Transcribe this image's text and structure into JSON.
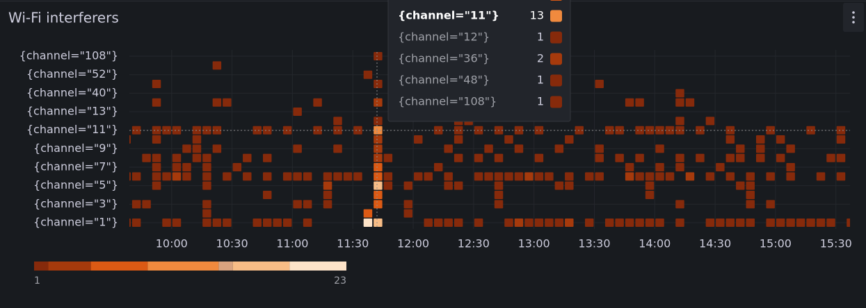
{
  "chart_data": {
    "type": "heatmap",
    "title": "Wi-Fi interferers",
    "xlim": [
      "09:39",
      "15:37"
    ],
    "xticks": [
      "10:00",
      "10:30",
      "11:00",
      "11:30",
      "12:00",
      "12:30",
      "13:00",
      "13:30",
      "14:00",
      "14:30",
      "15:00",
      "15:30"
    ],
    "bin_minutes": 5,
    "grid": true,
    "color_range": [
      1,
      23
    ],
    "color_bands": [
      {
        "from": 1,
        "color": "#862a0b"
      },
      {
        "from": 2,
        "color": "#a63a0c"
      },
      {
        "from": 5,
        "color": "#dc5a14"
      },
      {
        "from": 9,
        "color": "#f08a3e"
      },
      {
        "from": 14,
        "color": "#d9a37f"
      },
      {
        "from": 15,
        "color": "#f8bd86"
      },
      {
        "from": 19,
        "color": "#fde3c8"
      }
    ],
    "rows": [
      {
        "label": "{channel=\"1\"}",
        "x": [
          "09:35",
          "09:40",
          "09:55",
          "10:00",
          "10:15",
          "10:20",
          "10:25",
          "10:40",
          "10:45",
          "10:50",
          "10:55",
          "11:05",
          "11:35",
          "11:40",
          "12:05",
          "12:10",
          "12:15",
          "12:20",
          "12:30",
          "12:45",
          "12:50",
          "12:55",
          "13:00",
          "13:05",
          "13:10",
          "13:15",
          "13:25",
          "13:35",
          "13:40",
          "13:45",
          "13:50",
          "13:55",
          "14:00",
          "14:10",
          "14:25",
          "14:30",
          "14:35",
          "14:40",
          "14:45",
          "14:55",
          "15:00",
          "15:05",
          "15:10",
          "15:15",
          "15:20",
          "15:25",
          "15:35"
        ],
        "values": [
          1,
          1,
          1,
          1,
          1,
          1,
          1,
          1,
          1,
          1,
          1,
          1,
          23,
          17,
          1,
          1,
          1,
          1,
          1,
          1,
          2,
          1,
          1,
          1,
          1,
          2,
          1,
          1,
          1,
          1,
          1,
          1,
          1,
          1,
          1,
          1,
          1,
          1,
          1,
          1,
          1,
          1,
          1,
          1,
          1,
          1,
          1
        ]
      },
      {
        "label": null,
        "x": [
          "10:15",
          "11:35",
          "11:55"
        ],
        "values": [
          1,
          6,
          1
        ]
      },
      {
        "label": "{channel=\"3\"}",
        "x": [
          "09:40",
          "09:45",
          "10:15",
          "11:00",
          "11:05",
          "11:15",
          "11:40",
          "11:55",
          "12:40",
          "14:10",
          "14:45",
          "14:55"
        ],
        "values": [
          1,
          1,
          1,
          1,
          1,
          1,
          6,
          1,
          1,
          1,
          1,
          1
        ]
      },
      {
        "label": null,
        "x": [
          "10:45",
          "11:15",
          "11:40",
          "12:40",
          "13:55",
          "14:45"
        ],
        "values": [
          1,
          1,
          5,
          1,
          1,
          1
        ]
      },
      {
        "label": "{channel=\"5\"}",
        "x": [
          "09:50",
          "10:15",
          "11:15",
          "11:40",
          "11:45",
          "11:55",
          "12:15",
          "12:20",
          "12:40",
          "13:10",
          "13:15",
          "13:55",
          "14:40",
          "14:45"
        ],
        "values": [
          1,
          1,
          2,
          16,
          1,
          1,
          1,
          1,
          1,
          1,
          1,
          1,
          1,
          1
        ]
      },
      {
        "label": null,
        "x": [
          "09:35",
          "09:40",
          "09:50",
          "09:55",
          "10:00",
          "10:05",
          "10:15",
          "10:25",
          "10:35",
          "10:45",
          "10:55",
          "11:00",
          "11:05",
          "11:15",
          "11:20",
          "11:25",
          "11:30",
          "11:40",
          "11:45",
          "12:00",
          "12:05",
          "12:15",
          "12:30",
          "12:35",
          "12:40",
          "12:45",
          "12:50",
          "12:55",
          "13:00",
          "13:05",
          "13:15",
          "13:25",
          "13:30",
          "13:45",
          "13:50",
          "13:55",
          "14:00",
          "14:05",
          "14:15",
          "14:25",
          "14:35",
          "14:45",
          "14:55",
          "15:05",
          "15:20",
          "15:30"
        ],
        "values": [
          1,
          1,
          1,
          1,
          2,
          1,
          1,
          1,
          1,
          1,
          1,
          1,
          1,
          1,
          1,
          1,
          1,
          6,
          1,
          1,
          1,
          1,
          1,
          1,
          1,
          1,
          1,
          2,
          1,
          1,
          1,
          1,
          1,
          2,
          1,
          1,
          1,
          1,
          2,
          1,
          1,
          1,
          1,
          1,
          1,
          1
        ]
      },
      {
        "label": "{channel=\"7\"}",
        "x": [
          "09:50",
          "10:00",
          "10:05",
          "10:15",
          "10:30",
          "11:40",
          "12:10",
          "13:45",
          "14:00",
          "14:10",
          "14:30",
          "15:05"
        ],
        "values": [
          1,
          1,
          1,
          1,
          1,
          5,
          1,
          1,
          1,
          1,
          1,
          1
        ]
      },
      {
        "label": null,
        "x": [
          "09:45",
          "09:50",
          "10:00",
          "10:10",
          "10:15",
          "10:35",
          "10:45",
          "11:40",
          "11:45",
          "12:20",
          "12:30",
          "12:40",
          "13:00",
          "13:30",
          "13:40",
          "13:50",
          "14:10",
          "14:20",
          "14:35",
          "14:40",
          "14:50",
          "15:00",
          "15:25",
          "15:30"
        ],
        "values": [
          1,
          1,
          1,
          1,
          1,
          1,
          1,
          4,
          1,
          1,
          1,
          1,
          1,
          1,
          1,
          1,
          1,
          1,
          1,
          1,
          1,
          1,
          1,
          1
        ]
      },
      {
        "label": "{channel=\"9\"}",
        "x": [
          "10:05",
          "10:10",
          "10:20",
          "11:00",
          "11:20",
          "11:40",
          "12:15",
          "12:35",
          "12:50",
          "13:10",
          "13:30",
          "14:00",
          "14:40",
          "14:50",
          "15:05"
        ],
        "values": [
          1,
          1,
          1,
          1,
          1,
          3,
          1,
          1,
          1,
          1,
          1,
          1,
          1,
          1,
          1
        ]
      },
      {
        "label": null,
        "x": [
          "09:35",
          "09:50",
          "10:10",
          "11:40",
          "12:00",
          "12:20",
          "12:45",
          "13:15",
          "14:35",
          "14:50",
          "15:00",
          "15:30"
        ],
        "values": [
          1,
          1,
          1,
          3,
          1,
          1,
          1,
          1,
          1,
          1,
          1,
          1
        ]
      },
      {
        "label": "{channel=\"11\"}",
        "x": [
          "09:40",
          "09:50",
          "09:55",
          "10:00",
          "10:10",
          "10:15",
          "10:20",
          "10:40",
          "10:45",
          "10:55",
          "11:10",
          "11:20",
          "11:30",
          "11:40",
          "12:10",
          "12:20",
          "12:30",
          "12:40",
          "12:50",
          "13:00",
          "13:20",
          "13:35",
          "13:40",
          "13:50",
          "13:55",
          "14:00",
          "14:05",
          "14:10",
          "14:20",
          "14:35",
          "14:55",
          "15:15",
          "15:30"
        ],
        "values": [
          1,
          1,
          1,
          1,
          1,
          1,
          1,
          1,
          1,
          1,
          1,
          1,
          1,
          13,
          1,
          1,
          1,
          1,
          1,
          1,
          1,
          1,
          1,
          1,
          1,
          1,
          1,
          1,
          1,
          1,
          1,
          1,
          1
        ]
      },
      {
        "label": null,
        "x": [
          "11:20",
          "11:40",
          "12:20",
          "12:25",
          "14:10",
          "14:25"
        ],
        "values": [
          1,
          1,
          1,
          1,
          1,
          1
        ]
      },
      {
        "label": "{channel=\"13\"}",
        "x": [
          "11:00"
        ],
        "values": [
          1
        ]
      },
      {
        "label": null,
        "x": [
          "09:50",
          "10:20",
          "10:25",
          "11:10",
          "11:40",
          "13:45",
          "13:50",
          "14:10",
          "14:15"
        ],
        "values": [
          1,
          1,
          1,
          1,
          2,
          1,
          1,
          1,
          1
        ]
      },
      {
        "label": "{channel=\"40\"}",
        "x": [
          "14:10"
        ],
        "values": [
          1
        ]
      },
      {
        "label": null,
        "x": [
          "09:50",
          "11:40",
          "13:30"
        ],
        "values": [
          1,
          1,
          1
        ]
      },
      {
        "label": "{channel=\"52\"}",
        "x": [
          "11:35"
        ],
        "values": [
          1
        ]
      },
      {
        "label": null,
        "x": [
          "10:20"
        ],
        "values": [
          1
        ]
      },
      {
        "label": "{channel=\"108\"}",
        "x": [
          "11:40"
        ],
        "values": [
          1
        ]
      }
    ],
    "tooltip": {
      "items": [
        {
          "label": "{channel=\"11\"}",
          "value": 13
        },
        {
          "label": "{channel=\"12\"}",
          "value": 1
        },
        {
          "label": "{channel=\"36\"}",
          "value": 2
        },
        {
          "label": "{channel=\"48\"}",
          "value": 1
        },
        {
          "label": "{channel=\"108\"}",
          "value": 1
        }
      ]
    }
  }
}
